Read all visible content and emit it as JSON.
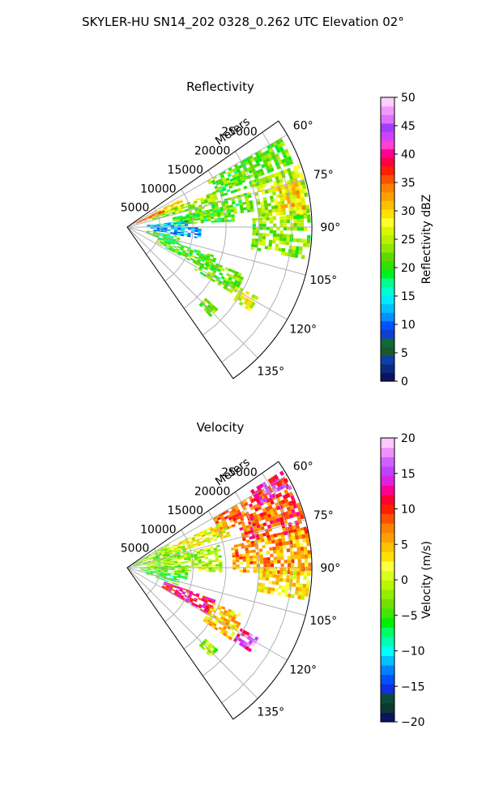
{
  "figure": {
    "suptitle": "SKYLER-HU  SN14_202  0328_0.262 UTC Elevation 02°"
  },
  "chart_data": [
    {
      "type": "heatmap",
      "projection": "polar-sector",
      "title": "Reflectivity",
      "radial_label": "Meters",
      "radial_ticks": [
        5000,
        10000,
        15000,
        20000,
        25000
      ],
      "radial_tick_labels": [
        "5000",
        "10000",
        "15000",
        "20000",
        "25000"
      ],
      "rlim": [
        0,
        28000
      ],
      "azimuth_range_deg": [
        55,
        145
      ],
      "azimuth_ticks_deg": [
        60,
        75,
        90,
        105,
        120,
        135
      ],
      "azimuth_tick_labels": [
        "60°",
        "75°",
        "90°",
        "105°",
        "120°",
        "135°"
      ],
      "grid": true,
      "colorbar": {
        "label": "Reflectivity dBZ",
        "min": 0,
        "max": 50,
        "ticks": [
          0,
          5,
          10,
          15,
          20,
          25,
          30,
          35,
          40,
          45,
          50
        ],
        "tick_labels": [
          "0",
          "5",
          "10",
          "15",
          "20",
          "25",
          "30",
          "35",
          "40",
          "45",
          "50"
        ],
        "colors": [
          "#0a1460",
          "#0b2a80",
          "#0d3fa8",
          "#1a5a2a",
          "#0e6a3a",
          "#0f3fd0",
          "#0050ff",
          "#0090ff",
          "#00c0ff",
          "#00e8ff",
          "#00ffd0",
          "#00ff90",
          "#00f020",
          "#30e000",
          "#60d800",
          "#90e800",
          "#b8f000",
          "#d8f800",
          "#ffff30",
          "#ffe000",
          "#ffc000",
          "#ffa000",
          "#ff8000",
          "#ff5000",
          "#ff2000",
          "#ff0040",
          "#ff0090",
          "#ff40d0",
          "#d040ff",
          "#a040ff",
          "#e070ff",
          "#f09aff",
          "#ffd0ff"
        ]
      },
      "field_regions": [
        {
          "az": [
            60,
            68
          ],
          "r": [
            14000,
            27000
          ],
          "value": 22
        },
        {
          "az": [
            67,
            72
          ],
          "r": [
            15000,
            21000
          ],
          "value": 21
        },
        {
          "az": [
            70,
            86
          ],
          "r": [
            20000,
            27500
          ],
          "value": 25
        },
        {
          "az": [
            74,
            84
          ],
          "r": [
            23000,
            27000
          ],
          "value": 30
        },
        {
          "az": [
            86,
            100
          ],
          "r": [
            19000,
            27500
          ],
          "value": 23
        },
        {
          "az": [
            62,
            70
          ],
          "r": [
            1000,
            9000
          ],
          "value": 30
        },
        {
          "az": [
            64,
            69
          ],
          "r": [
            1500,
            6000
          ],
          "value": 38
        },
        {
          "az": [
            68,
            74
          ],
          "r": [
            4000,
            14000
          ],
          "value": 24
        },
        {
          "az": [
            74,
            82
          ],
          "r": [
            9000,
            19000
          ],
          "value": 22
        },
        {
          "az": [
            78,
            86
          ],
          "r": [
            7000,
            16000
          ],
          "value": 21
        },
        {
          "az": [
            84,
            92
          ],
          "r": [
            3000,
            9000
          ],
          "value": 14
        },
        {
          "az": [
            90,
            98
          ],
          "r": [
            4000,
            11000
          ],
          "value": 12
        },
        {
          "az": [
            100,
            108
          ],
          "r": [
            3000,
            8000
          ],
          "value": 20
        },
        {
          "az": [
            108,
            118
          ],
          "r": [
            5000,
            14000
          ],
          "value": 21
        },
        {
          "az": [
            112,
            122
          ],
          "r": [
            12000,
            19000
          ],
          "value": 22
        },
        {
          "az": [
            118,
            124
          ],
          "r": [
            19500,
            22500
          ],
          "value": 27
        },
        {
          "az": [
            132,
            136
          ],
          "r": [
            16000,
            18500
          ],
          "value": 22
        }
      ]
    },
    {
      "type": "heatmap",
      "projection": "polar-sector",
      "title": "Velocity",
      "radial_label": "Meters",
      "radial_ticks": [
        5000,
        10000,
        15000,
        20000,
        25000
      ],
      "radial_tick_labels": [
        "5000",
        "10000",
        "15000",
        "20000",
        "25000"
      ],
      "rlim": [
        0,
        28000
      ],
      "azimuth_range_deg": [
        55,
        145
      ],
      "azimuth_ticks_deg": [
        60,
        75,
        90,
        105,
        120,
        135
      ],
      "azimuth_tick_labels": [
        "60°",
        "75°",
        "90°",
        "105°",
        "120°",
        "135°"
      ],
      "grid": true,
      "colorbar": {
        "label": "Velocity (m/s)",
        "min": -20,
        "max": 20,
        "ticks": [
          -20,
          -15,
          -10,
          -5,
          0,
          5,
          10,
          15,
          20
        ],
        "tick_labels": [
          "−20",
          "−15",
          "−10",
          "−5",
          "0",
          "5",
          "10",
          "15",
          "20"
        ],
        "colors": [
          "#0a1460",
          "#0a3a30",
          "#0c4a3a",
          "#1030e0",
          "#0050ff",
          "#0080ff",
          "#00c0ff",
          "#00ffff",
          "#00ffb0",
          "#00ff60",
          "#00f000",
          "#40e800",
          "#70e000",
          "#90f000",
          "#b8f800",
          "#d8ff20",
          "#ffff40",
          "#ffe000",
          "#ffc000",
          "#ffa000",
          "#ff8000",
          "#ff5000",
          "#ff2000",
          "#ff0030",
          "#ff0090",
          "#e020e0",
          "#c040ff",
          "#d060ff",
          "#f090ff",
          "#ffc8ff"
        ]
      },
      "field_regions": [
        {
          "az": [
            60,
            68
          ],
          "r": [
            15000,
            27000
          ],
          "value": 9
        },
        {
          "az": [
            58,
            64
          ],
          "r": [
            22000,
            27500
          ],
          "value": 14
        },
        {
          "az": [
            68,
            78
          ],
          "r": [
            18000,
            27500
          ],
          "value": 9
        },
        {
          "az": [
            78,
            92
          ],
          "r": [
            16000,
            27500
          ],
          "value": 6
        },
        {
          "az": [
            90,
            100
          ],
          "r": [
            20000,
            27500
          ],
          "value": 3
        },
        {
          "az": [
            64,
            72
          ],
          "r": [
            6000,
            16000
          ],
          "value": 2
        },
        {
          "az": [
            60,
            70
          ],
          "r": [
            1000,
            7000
          ],
          "value": -2
        },
        {
          "az": [
            68,
            80
          ],
          "r": [
            1000,
            9000
          ],
          "value": -3
        },
        {
          "az": [
            76,
            92
          ],
          "r": [
            3000,
            14000
          ],
          "value": -1
        },
        {
          "az": [
            88,
            100
          ],
          "r": [
            2000,
            9000
          ],
          "value": -4
        },
        {
          "az": [
            100,
            108
          ],
          "r": [
            3000,
            8000
          ],
          "value": -6
        },
        {
          "az": [
            110,
            120
          ],
          "r": [
            6000,
            14000
          ],
          "value": 12
        },
        {
          "az": [
            112,
            124
          ],
          "r": [
            14000,
            19000
          ],
          "value": 4
        },
        {
          "az": [
            118,
            124
          ],
          "r": [
            19500,
            22500
          ],
          "value": 15
        },
        {
          "az": [
            132,
            136
          ],
          "r": [
            16000,
            18500
          ],
          "value": -2
        }
      ]
    }
  ]
}
